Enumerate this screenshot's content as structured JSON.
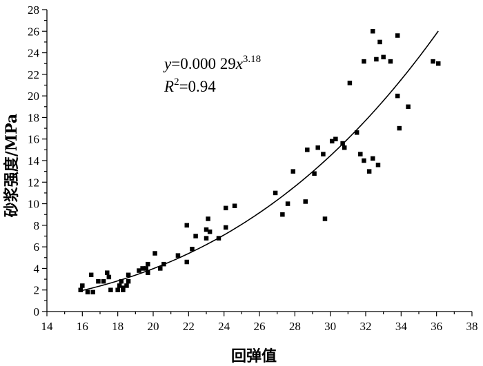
{
  "chart_data": {
    "type": "scatter",
    "xlabel": "回弹值",
    "ylabel": "砂浆强度/MPa",
    "xlim": [
      14,
      38
    ],
    "ylim": [
      0,
      28
    ],
    "xticks": [
      14,
      16,
      18,
      20,
      22,
      24,
      26,
      28,
      30,
      32,
      34,
      36,
      38
    ],
    "yticks": [
      0,
      2,
      4,
      6,
      8,
      10,
      12,
      14,
      16,
      18,
      20,
      22,
      24,
      26,
      28
    ],
    "grid": false,
    "annotation": {
      "equation_lhs": "y",
      "equation_rhs": "=0.000 29",
      "equation_var": "x",
      "equation_exp": "3.18",
      "r2_label": "R",
      "r2_sup": "2",
      "r2_value": "=0.94"
    },
    "fit": {
      "coef": 0.00029,
      "exp": 3.18,
      "x_range": [
        16,
        36.1
      ]
    },
    "points": [
      [
        15.9,
        2.0
      ],
      [
        16.0,
        2.4
      ],
      [
        16.3,
        1.8
      ],
      [
        16.5,
        3.4
      ],
      [
        16.6,
        1.8
      ],
      [
        16.9,
        2.8
      ],
      [
        17.2,
        2.8
      ],
      [
        17.4,
        3.6
      ],
      [
        17.5,
        3.2
      ],
      [
        17.6,
        2.0
      ],
      [
        18.0,
        2.0
      ],
      [
        18.1,
        2.4
      ],
      [
        18.2,
        2.8
      ],
      [
        18.3,
        2.2
      ],
      [
        18.3,
        2.0
      ],
      [
        18.5,
        2.4
      ],
      [
        18.6,
        3.4
      ],
      [
        18.6,
        2.8
      ],
      [
        19.2,
        3.8
      ],
      [
        19.4,
        4.0
      ],
      [
        19.6,
        4.0
      ],
      [
        19.7,
        3.6
      ],
      [
        19.7,
        4.4
      ],
      [
        20.1,
        5.4
      ],
      [
        20.4,
        4.0
      ],
      [
        20.6,
        4.4
      ],
      [
        21.4,
        5.2
      ],
      [
        21.9,
        8.0
      ],
      [
        21.9,
        4.6
      ],
      [
        22.2,
        5.8
      ],
      [
        22.4,
        7.0
      ],
      [
        23.0,
        7.6
      ],
      [
        23.0,
        6.8
      ],
      [
        23.1,
        8.6
      ],
      [
        23.2,
        7.4
      ],
      [
        23.7,
        6.8
      ],
      [
        24.1,
        9.6
      ],
      [
        24.1,
        7.8
      ],
      [
        24.6,
        9.8
      ],
      [
        26.9,
        11.0
      ],
      [
        27.3,
        9.0
      ],
      [
        27.6,
        10.0
      ],
      [
        27.9,
        13.0
      ],
      [
        28.6,
        10.2
      ],
      [
        28.7,
        15.0
      ],
      [
        29.1,
        12.8
      ],
      [
        29.3,
        15.2
      ],
      [
        29.6,
        14.6
      ],
      [
        29.7,
        8.6
      ],
      [
        30.1,
        15.8
      ],
      [
        30.3,
        16.0
      ],
      [
        30.7,
        15.6
      ],
      [
        30.8,
        15.2
      ],
      [
        31.1,
        21.2
      ],
      [
        31.5,
        16.6
      ],
      [
        31.7,
        14.6
      ],
      [
        31.9,
        14.0
      ],
      [
        31.9,
        23.2
      ],
      [
        32.2,
        13.0
      ],
      [
        32.4,
        14.2
      ],
      [
        32.4,
        26.0
      ],
      [
        32.6,
        23.4
      ],
      [
        32.7,
        13.6
      ],
      [
        32.8,
        25.0
      ],
      [
        33.0,
        23.6
      ],
      [
        33.4,
        23.2
      ],
      [
        33.8,
        25.6
      ],
      [
        33.8,
        20.0
      ],
      [
        33.9,
        17.0
      ],
      [
        34.4,
        19.0
      ],
      [
        35.8,
        23.2
      ],
      [
        36.1,
        23.0
      ]
    ]
  }
}
